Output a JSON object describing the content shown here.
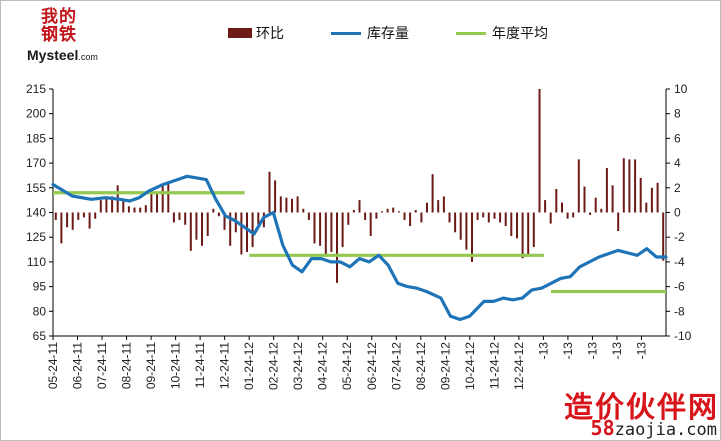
{
  "logo": {
    "line1": "我的",
    "line2": "钢铁",
    "brand": "Mysteel",
    "domain": ".com"
  },
  "watermark": {
    "cn": "造价伙伴网",
    "url_num": "58",
    "url_text": "zaojia.com"
  },
  "colors": {
    "bar": "#6b1a16",
    "line": "#1f74b8",
    "avg": "#92c94e",
    "grid": "#000000"
  },
  "chart_data": {
    "type": "bar",
    "legend": [
      {
        "label": "环比",
        "kind": "bar"
      },
      {
        "label": "库存量",
        "kind": "line"
      },
      {
        "label": "年度平均",
        "kind": "line"
      }
    ],
    "legend_placement": "top",
    "x_tick_labels": [
      "05-24-11",
      "06-24-11",
      "07-24-11",
      "08-24-11",
      "09-24-11",
      "10-24-11",
      "11-24-11",
      "12-24-11",
      "01-24-12",
      "02-24-12",
      "03-24-12",
      "04-24-12",
      "05-24-12",
      "06-24-12",
      "07-24-12",
      "08-24-12",
      "09-24-12",
      "10-24-12",
      "11-24-12",
      "12-24-12",
      "-13",
      "-13",
      "-13",
      "-13",
      "-13"
    ],
    "y_left": {
      "ticks": [
        65,
        80,
        95,
        110,
        125,
        140,
        155,
        170,
        185,
        200,
        215
      ],
      "ylim": [
        65,
        215
      ]
    },
    "y_right": {
      "ticks": [
        -10,
        -8,
        -6,
        -4,
        -2,
        0,
        2,
        4,
        6,
        8,
        10
      ],
      "ylim": [
        -10,
        10
      ]
    },
    "grid": "horizontal-none",
    "series": [
      {
        "name": "环比",
        "axis": "right",
        "kind": "bar",
        "values": [
          -0.6,
          -2.5,
          -1.2,
          -1.4,
          -0.6,
          -0.4,
          -1.3,
          -0.5,
          1.0,
          1.2,
          1.3,
          2.2,
          1.0,
          0.5,
          0.4,
          0.4,
          0.6,
          1.5,
          1.6,
          2.3,
          2.5,
          -0.8,
          -0.6,
          -1.0,
          -3.1,
          -2.2,
          -2.7,
          -1.9,
          0.3,
          -0.3,
          -1.4,
          -2.7,
          -1.6,
          -3.4,
          -3.2,
          -2.8,
          -1.0,
          -1.2,
          3.3,
          2.6,
          1.3,
          1.2,
          1.1,
          1.3,
          0.3,
          -0.6,
          -2.5,
          -2.7,
          -3.5,
          -3.2,
          -5.7,
          -2.8,
          -1.0,
          0.2,
          1.0,
          -0.6,
          -1.9,
          -0.5,
          0.1,
          0.3,
          0.4,
          0.1,
          -0.6,
          -1.1,
          0.2,
          -0.8,
          0.8,
          3.1,
          1.0,
          1.3,
          -0.8,
          -1.6,
          -2.2,
          -3.0,
          -4.0,
          -0.6,
          -0.4,
          -0.8,
          -0.5,
          -0.8,
          -1.1,
          -1.9,
          -2.1,
          -3.7,
          -3.4,
          -2.8,
          10.0,
          1.0,
          -0.9,
          1.9,
          0.8,
          -0.5,
          -0.4,
          4.3,
          2.1,
          -0.2,
          1.2,
          0.3,
          3.6,
          2.2,
          -1.5,
          4.4,
          4.3,
          4.3,
          2.8,
          0.8,
          2.0,
          2.4,
          -3.9
        ]
      },
      {
        "name": "库存量",
        "axis": "left",
        "kind": "line",
        "x_index": [
          0,
          8,
          16,
          22,
          28,
          32,
          36,
          40,
          46,
          52,
          56,
          60,
          64,
          68,
          72,
          76,
          80,
          84,
          88,
          92,
          96,
          100,
          104,
          108,
          112,
          116,
          120,
          124,
          128,
          132,
          136,
          140,
          144,
          148,
          152,
          156,
          162,
          166,
          170,
          174,
          180,
          184,
          188,
          192,
          196,
          200,
          204,
          208,
          212,
          216,
          220,
          228,
          236,
          244,
          248,
          252,
          256
        ],
        "y": [
          157,
          150,
          148,
          149,
          148,
          147,
          149,
          153,
          157,
          160,
          162,
          161,
          160,
          148,
          138,
          135,
          131,
          127,
          137,
          140,
          120,
          108,
          104,
          112,
          112,
          110,
          110,
          107,
          112,
          110,
          114,
          108,
          97,
          95,
          94,
          92,
          88,
          77,
          75,
          77,
          86,
          86,
          88,
          87,
          88,
          93,
          94,
          97,
          100,
          101,
          107,
          113,
          117,
          114,
          118,
          113,
          113
        ]
      },
      {
        "name": "年度平均",
        "axis": "left",
        "kind": "line",
        "segments": [
          {
            "from_index": 0,
            "to_index": 80,
            "y": 152
          },
          {
            "from_index": 82,
            "to_index": 205,
            "y": 114
          },
          {
            "from_index": 208,
            "to_index": 256,
            "y": 92
          }
        ]
      }
    ]
  }
}
